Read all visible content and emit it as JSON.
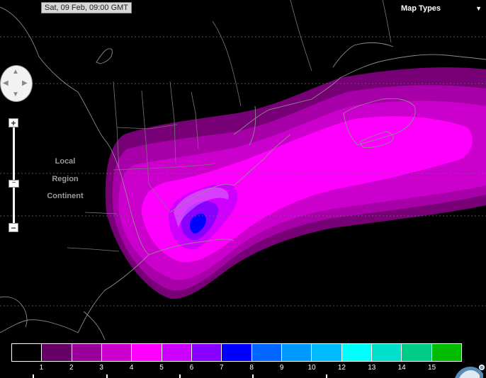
{
  "timestamp": "Sat, 09 Feb, 09:00 GMT",
  "map_types": {
    "label": "Map Types",
    "caret_icon": "triangle-down"
  },
  "zoom": {
    "plus": "+",
    "minus": "−",
    "thumb": "−",
    "levels": [
      "Local",
      "Region",
      "Continent"
    ]
  },
  "legend": {
    "colors": [
      "#000000",
      "#660066",
      "#990099",
      "#cc00cc",
      "#ff00ff",
      "#cc00ff",
      "#8800ff",
      "#0000ff",
      "#0066ff",
      "#0099ff",
      "#00bbff",
      "#00ffff",
      "#00e0cc",
      "#00cc88",
      "#00bb00"
    ],
    "labels": [
      "1",
      "2",
      "3",
      "4",
      "5",
      "6",
      "7",
      "8",
      "9",
      "10",
      "12",
      "13",
      "14",
      "15"
    ]
  }
}
